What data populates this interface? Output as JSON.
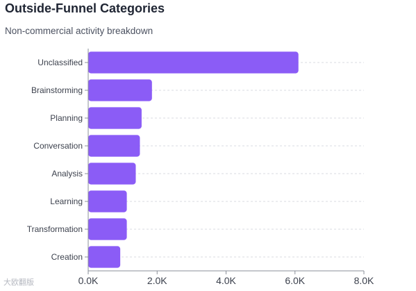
{
  "chart_data": {
    "type": "bar",
    "orientation": "horizontal",
    "title": "Outside-Funnel Categories",
    "subtitle": "Non-commercial activity breakdown",
    "categories": [
      "Unclassified",
      "Brainstorming",
      "Planning",
      "Conversation",
      "Analysis",
      "Learning",
      "Transformation",
      "Creation"
    ],
    "values": [
      6100,
      1850,
      1550,
      1500,
      1380,
      1120,
      1120,
      930
    ],
    "xlim": [
      0,
      8000
    ],
    "xticks": [
      {
        "value": 0,
        "label": "0.0K"
      },
      {
        "value": 2000,
        "label": "2.0K"
      },
      {
        "value": 4000,
        "label": "4.0K"
      },
      {
        "value": 6000,
        "label": "6.0K"
      },
      {
        "value": 8000,
        "label": "8.0K"
      }
    ],
    "bar_color": "#8b5cf6",
    "grid": "dashed horizontal",
    "legend": "none"
  },
  "watermark": "大欧翻版"
}
